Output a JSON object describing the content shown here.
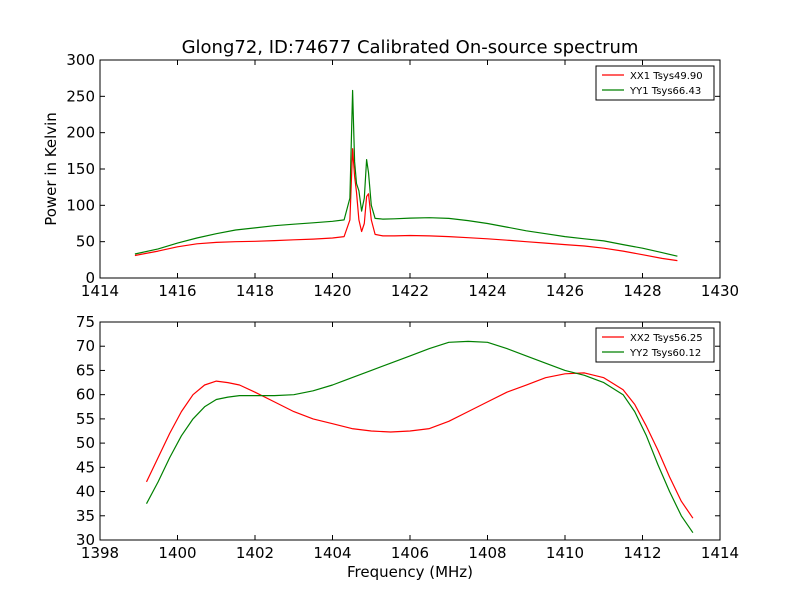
{
  "figure": {
    "title": "Glong72, ID:74677 Calibrated On-source spectrum",
    "xlabel": "Frequency (MHz)"
  },
  "chart_data": [
    {
      "type": "line",
      "ylabel": "Power in Kelvin",
      "xlim": [
        1414,
        1430
      ],
      "ylim": [
        0,
        300
      ],
      "xticks": [
        1414,
        1416,
        1418,
        1420,
        1422,
        1424,
        1426,
        1428,
        1430
      ],
      "yticks": [
        0,
        50,
        100,
        150,
        200,
        250,
        300
      ],
      "legend_position": "top-right",
      "series": [
        {
          "name": "XX1 Tsys49.90",
          "color": "#ff0000",
          "x": [
            1414.9,
            1415.5,
            1416.0,
            1416.5,
            1417.0,
            1417.5,
            1418.0,
            1418.5,
            1419.0,
            1419.5,
            1420.0,
            1420.3,
            1420.45,
            1420.52,
            1420.57,
            1420.62,
            1420.68,
            1420.75,
            1420.82,
            1420.88,
            1420.93,
            1421.0,
            1421.1,
            1421.3,
            1421.6,
            1422.0,
            1422.5,
            1423.0,
            1423.5,
            1424.0,
            1424.5,
            1425.0,
            1425.5,
            1426.0,
            1426.5,
            1427.0,
            1427.5,
            1428.0,
            1428.5,
            1428.9
          ],
          "y": [
            31,
            37,
            43,
            47,
            49,
            50,
            50.5,
            51.5,
            52.5,
            53.5,
            55,
            57,
            80,
            178,
            140,
            118,
            80,
            64,
            75,
            112,
            116,
            80,
            60,
            58,
            58,
            58.5,
            58,
            57,
            55.5,
            54,
            52,
            50,
            48,
            46,
            44,
            41,
            37,
            32,
            27,
            24
          ]
        },
        {
          "name": "YY1 Tsys66.43",
          "color": "#008000",
          "x": [
            1414.9,
            1415.5,
            1416.0,
            1416.5,
            1417.0,
            1417.5,
            1418.0,
            1418.5,
            1419.0,
            1419.5,
            1420.0,
            1420.3,
            1420.45,
            1420.52,
            1420.57,
            1420.62,
            1420.68,
            1420.75,
            1420.82,
            1420.88,
            1420.93,
            1421.0,
            1421.1,
            1421.3,
            1421.6,
            1422.0,
            1422.5,
            1423.0,
            1423.5,
            1424.0,
            1424.5,
            1425.0,
            1425.5,
            1426.0,
            1426.5,
            1427.0,
            1427.5,
            1428.0,
            1428.5,
            1428.9
          ],
          "y": [
            33,
            40,
            48,
            55,
            61,
            66,
            69,
            72,
            74,
            76,
            78,
            80,
            110,
            258,
            160,
            130,
            120,
            92,
            110,
            163,
            145,
            100,
            82,
            81,
            81.5,
            82.5,
            83,
            82,
            79,
            75,
            70,
            65,
            61,
            57,
            54,
            51,
            46,
            41,
            35,
            30
          ]
        }
      ]
    },
    {
      "type": "line",
      "ylabel": "",
      "xlim": [
        1398,
        1414
      ],
      "ylim": [
        30,
        75
      ],
      "xticks": [
        1398,
        1400,
        1402,
        1404,
        1406,
        1408,
        1410,
        1412,
        1414
      ],
      "yticks": [
        30,
        35,
        40,
        45,
        50,
        55,
        60,
        65,
        70,
        75
      ],
      "legend_position": "top-right",
      "series": [
        {
          "name": "XX2 Tsys56.25",
          "color": "#ff0000",
          "x": [
            1399.2,
            1399.5,
            1399.8,
            1400.1,
            1400.4,
            1400.7,
            1401.0,
            1401.3,
            1401.6,
            1402.0,
            1402.5,
            1403.0,
            1403.5,
            1404.0,
            1404.5,
            1405.0,
            1405.5,
            1406.0,
            1406.5,
            1407.0,
            1407.5,
            1408.0,
            1408.5,
            1409.0,
            1409.5,
            1410.0,
            1410.5,
            1411.0,
            1411.5,
            1411.8,
            1412.1,
            1412.4,
            1412.7,
            1413.0,
            1413.3
          ],
          "y": [
            42,
            47,
            52,
            56.5,
            60,
            62,
            62.8,
            62.5,
            62,
            60.5,
            58.5,
            56.5,
            55,
            54,
            53,
            52.5,
            52.3,
            52.5,
            53,
            54.5,
            56.5,
            58.5,
            60.5,
            62,
            63.5,
            64.3,
            64.5,
            63.5,
            61,
            58,
            53.5,
            48.5,
            43,
            38,
            34.5
          ]
        },
        {
          "name": "YY2 Tsys60.12",
          "color": "#008000",
          "x": [
            1399.2,
            1399.5,
            1399.8,
            1400.1,
            1400.4,
            1400.7,
            1401.0,
            1401.3,
            1401.6,
            1402.0,
            1402.5,
            1403.0,
            1403.5,
            1404.0,
            1404.5,
            1405.0,
            1405.5,
            1406.0,
            1406.5,
            1407.0,
            1407.5,
            1408.0,
            1408.5,
            1409.0,
            1409.5,
            1410.0,
            1410.5,
            1411.0,
            1411.5,
            1411.8,
            1412.1,
            1412.4,
            1412.7,
            1413.0,
            1413.3
          ],
          "y": [
            37.5,
            42,
            47,
            51.5,
            55,
            57.5,
            59,
            59.5,
            59.8,
            59.8,
            59.8,
            60,
            60.8,
            62,
            63.5,
            65,
            66.5,
            68,
            69.5,
            70.8,
            71,
            70.8,
            69.5,
            68,
            66.5,
            65,
            64,
            62.5,
            60,
            56.5,
            51.5,
            45.5,
            40,
            35,
            31.5
          ]
        }
      ]
    }
  ]
}
